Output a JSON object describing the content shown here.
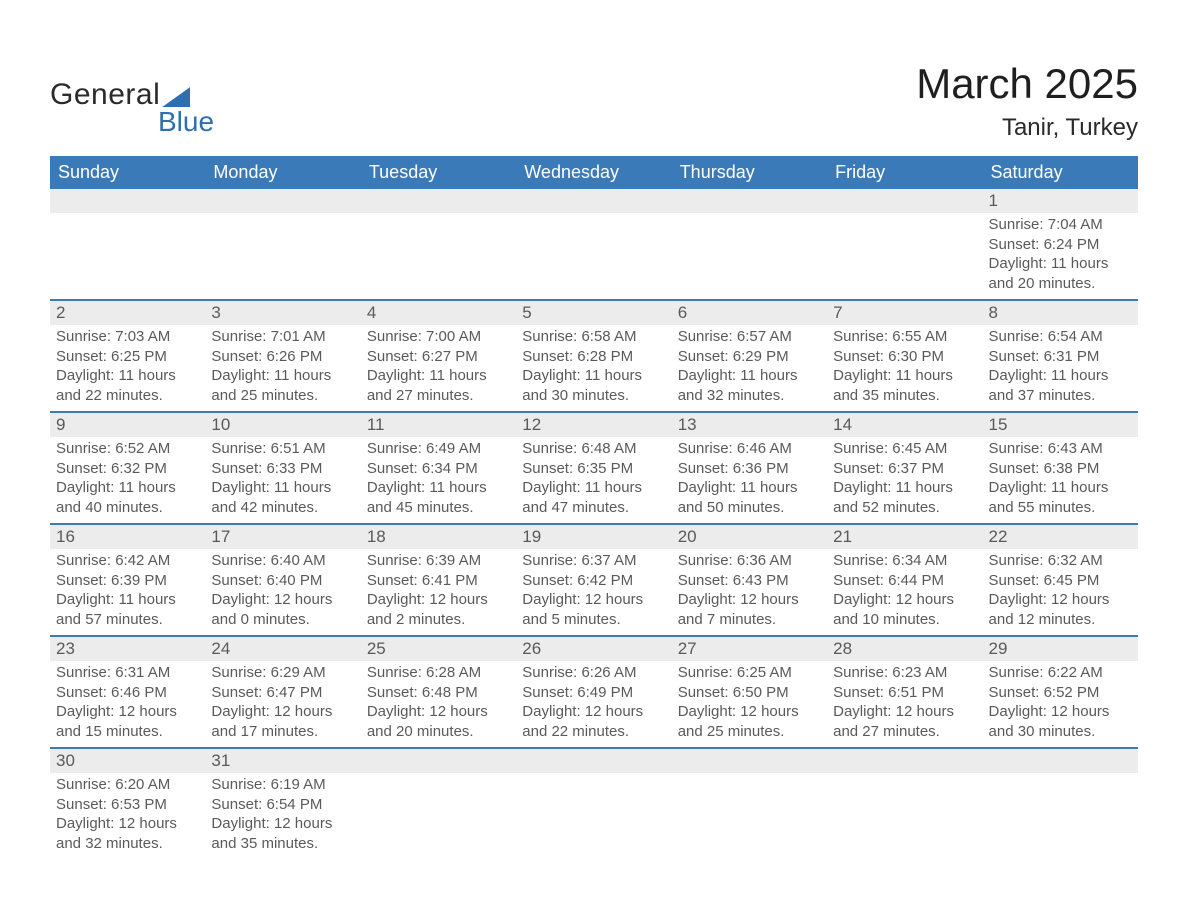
{
  "brand": {
    "main": "General",
    "sub": "Blue"
  },
  "title": {
    "month": "March 2025",
    "location": "Tanir, Turkey"
  },
  "colors": {
    "header_bg": "#3b7ab8",
    "header_text": "#ffffff",
    "day_num_bg": "#ececec",
    "text": "#5a5a5a",
    "divider": "#3b7ab8",
    "logo_blue": "#2f6fb1",
    "logo_dark": "#2a2a2a",
    "page_bg": "#ffffff"
  },
  "typography": {
    "month_title_fontsize_pt": 32,
    "location_fontsize_pt": 18,
    "header_fontsize_pt": 13,
    "daynum_fontsize_pt": 13,
    "body_fontsize_pt": 11,
    "font_family": "Arial"
  },
  "calendar": {
    "type": "table",
    "columns": [
      "Sunday",
      "Monday",
      "Tuesday",
      "Wednesday",
      "Thursday",
      "Friday",
      "Saturday"
    ],
    "weeks": [
      [
        null,
        null,
        null,
        null,
        null,
        null,
        {
          "day": "1",
          "sunrise": "Sunrise: 7:04 AM",
          "sunset": "Sunset: 6:24 PM",
          "daylight1": "Daylight: 11 hours",
          "daylight2": "and 20 minutes."
        }
      ],
      [
        {
          "day": "2",
          "sunrise": "Sunrise: 7:03 AM",
          "sunset": "Sunset: 6:25 PM",
          "daylight1": "Daylight: 11 hours",
          "daylight2": "and 22 minutes."
        },
        {
          "day": "3",
          "sunrise": "Sunrise: 7:01 AM",
          "sunset": "Sunset: 6:26 PM",
          "daylight1": "Daylight: 11 hours",
          "daylight2": "and 25 minutes."
        },
        {
          "day": "4",
          "sunrise": "Sunrise: 7:00 AM",
          "sunset": "Sunset: 6:27 PM",
          "daylight1": "Daylight: 11 hours",
          "daylight2": "and 27 minutes."
        },
        {
          "day": "5",
          "sunrise": "Sunrise: 6:58 AM",
          "sunset": "Sunset: 6:28 PM",
          "daylight1": "Daylight: 11 hours",
          "daylight2": "and 30 minutes."
        },
        {
          "day": "6",
          "sunrise": "Sunrise: 6:57 AM",
          "sunset": "Sunset: 6:29 PM",
          "daylight1": "Daylight: 11 hours",
          "daylight2": "and 32 minutes."
        },
        {
          "day": "7",
          "sunrise": "Sunrise: 6:55 AM",
          "sunset": "Sunset: 6:30 PM",
          "daylight1": "Daylight: 11 hours",
          "daylight2": "and 35 minutes."
        },
        {
          "day": "8",
          "sunrise": "Sunrise: 6:54 AM",
          "sunset": "Sunset: 6:31 PM",
          "daylight1": "Daylight: 11 hours",
          "daylight2": "and 37 minutes."
        }
      ],
      [
        {
          "day": "9",
          "sunrise": "Sunrise: 6:52 AM",
          "sunset": "Sunset: 6:32 PM",
          "daylight1": "Daylight: 11 hours",
          "daylight2": "and 40 minutes."
        },
        {
          "day": "10",
          "sunrise": "Sunrise: 6:51 AM",
          "sunset": "Sunset: 6:33 PM",
          "daylight1": "Daylight: 11 hours",
          "daylight2": "and 42 minutes."
        },
        {
          "day": "11",
          "sunrise": "Sunrise: 6:49 AM",
          "sunset": "Sunset: 6:34 PM",
          "daylight1": "Daylight: 11 hours",
          "daylight2": "and 45 minutes."
        },
        {
          "day": "12",
          "sunrise": "Sunrise: 6:48 AM",
          "sunset": "Sunset: 6:35 PM",
          "daylight1": "Daylight: 11 hours",
          "daylight2": "and 47 minutes."
        },
        {
          "day": "13",
          "sunrise": "Sunrise: 6:46 AM",
          "sunset": "Sunset: 6:36 PM",
          "daylight1": "Daylight: 11 hours",
          "daylight2": "and 50 minutes."
        },
        {
          "day": "14",
          "sunrise": "Sunrise: 6:45 AM",
          "sunset": "Sunset: 6:37 PM",
          "daylight1": "Daylight: 11 hours",
          "daylight2": "and 52 minutes."
        },
        {
          "day": "15",
          "sunrise": "Sunrise: 6:43 AM",
          "sunset": "Sunset: 6:38 PM",
          "daylight1": "Daylight: 11 hours",
          "daylight2": "and 55 minutes."
        }
      ],
      [
        {
          "day": "16",
          "sunrise": "Sunrise: 6:42 AM",
          "sunset": "Sunset: 6:39 PM",
          "daylight1": "Daylight: 11 hours",
          "daylight2": "and 57 minutes."
        },
        {
          "day": "17",
          "sunrise": "Sunrise: 6:40 AM",
          "sunset": "Sunset: 6:40 PM",
          "daylight1": "Daylight: 12 hours",
          "daylight2": "and 0 minutes."
        },
        {
          "day": "18",
          "sunrise": "Sunrise: 6:39 AM",
          "sunset": "Sunset: 6:41 PM",
          "daylight1": "Daylight: 12 hours",
          "daylight2": "and 2 minutes."
        },
        {
          "day": "19",
          "sunrise": "Sunrise: 6:37 AM",
          "sunset": "Sunset: 6:42 PM",
          "daylight1": "Daylight: 12 hours",
          "daylight2": "and 5 minutes."
        },
        {
          "day": "20",
          "sunrise": "Sunrise: 6:36 AM",
          "sunset": "Sunset: 6:43 PM",
          "daylight1": "Daylight: 12 hours",
          "daylight2": "and 7 minutes."
        },
        {
          "day": "21",
          "sunrise": "Sunrise: 6:34 AM",
          "sunset": "Sunset: 6:44 PM",
          "daylight1": "Daylight: 12 hours",
          "daylight2": "and 10 minutes."
        },
        {
          "day": "22",
          "sunrise": "Sunrise: 6:32 AM",
          "sunset": "Sunset: 6:45 PM",
          "daylight1": "Daylight: 12 hours",
          "daylight2": "and 12 minutes."
        }
      ],
      [
        {
          "day": "23",
          "sunrise": "Sunrise: 6:31 AM",
          "sunset": "Sunset: 6:46 PM",
          "daylight1": "Daylight: 12 hours",
          "daylight2": "and 15 minutes."
        },
        {
          "day": "24",
          "sunrise": "Sunrise: 6:29 AM",
          "sunset": "Sunset: 6:47 PM",
          "daylight1": "Daylight: 12 hours",
          "daylight2": "and 17 minutes."
        },
        {
          "day": "25",
          "sunrise": "Sunrise: 6:28 AM",
          "sunset": "Sunset: 6:48 PM",
          "daylight1": "Daylight: 12 hours",
          "daylight2": "and 20 minutes."
        },
        {
          "day": "26",
          "sunrise": "Sunrise: 6:26 AM",
          "sunset": "Sunset: 6:49 PM",
          "daylight1": "Daylight: 12 hours",
          "daylight2": "and 22 minutes."
        },
        {
          "day": "27",
          "sunrise": "Sunrise: 6:25 AM",
          "sunset": "Sunset: 6:50 PM",
          "daylight1": "Daylight: 12 hours",
          "daylight2": "and 25 minutes."
        },
        {
          "day": "28",
          "sunrise": "Sunrise: 6:23 AM",
          "sunset": "Sunset: 6:51 PM",
          "daylight1": "Daylight: 12 hours",
          "daylight2": "and 27 minutes."
        },
        {
          "day": "29",
          "sunrise": "Sunrise: 6:22 AM",
          "sunset": "Sunset: 6:52 PM",
          "daylight1": "Daylight: 12 hours",
          "daylight2": "and 30 minutes."
        }
      ],
      [
        {
          "day": "30",
          "sunrise": "Sunrise: 6:20 AM",
          "sunset": "Sunset: 6:53 PM",
          "daylight1": "Daylight: 12 hours",
          "daylight2": "and 32 minutes."
        },
        {
          "day": "31",
          "sunrise": "Sunrise: 6:19 AM",
          "sunset": "Sunset: 6:54 PM",
          "daylight1": "Daylight: 12 hours",
          "daylight2": "and 35 minutes."
        },
        null,
        null,
        null,
        null,
        null
      ]
    ]
  }
}
